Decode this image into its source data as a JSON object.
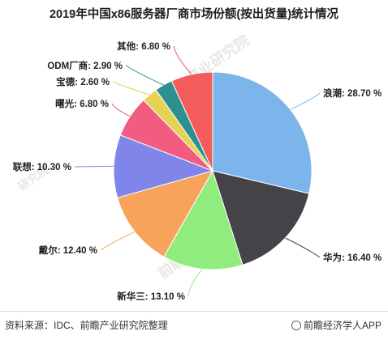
{
  "chart_data": {
    "type": "pie",
    "title": "2019年中国x86服务器厂商市场份额(按出货量)统计情况",
    "slices": [
      {
        "name": "浪潮",
        "value": 28.7,
        "label": "浪潮: 28.70 %",
        "color": "#7cb5ec"
      },
      {
        "name": "华为",
        "value": 16.4,
        "label": "华为: 16.40 %",
        "color": "#434348"
      },
      {
        "name": "新华三",
        "value": 13.1,
        "label": "新华三: 13.10 %",
        "color": "#90ed7d"
      },
      {
        "name": "戴尔",
        "value": 12.4,
        "label": "戴尔: 12.40 %",
        "color": "#f7a35c"
      },
      {
        "name": "联想",
        "value": 10.3,
        "label": "联想: 10.30 %",
        "color": "#8085e9"
      },
      {
        "name": "曙光",
        "value": 6.8,
        "label": "曙光: 6.80 %",
        "color": "#f15c80"
      },
      {
        "name": "宝德",
        "value": 2.6,
        "label": "宝德: 2.60 %",
        "color": "#e4d354"
      },
      {
        "name": "ODM厂商",
        "value": 2.9,
        "label": "ODM厂商: 2.90 %",
        "color": "#2b908f"
      },
      {
        "name": "其他",
        "value": 6.8,
        "label": "其他: 6.80 %",
        "color": "#f45b5b"
      }
    ]
  },
  "footer": {
    "source": "资料来源：IDC、前瞻产业研究院整理",
    "brand": "前瞻经济学人APP"
  },
  "watermark": {
    "text": "前瞻产业研究院",
    "tag": "研究院"
  }
}
